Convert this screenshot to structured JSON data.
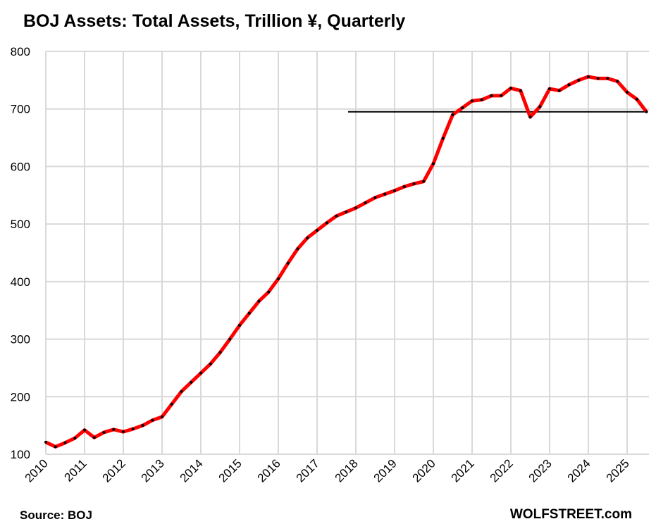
{
  "chart_data": {
    "type": "line",
    "title": "BOJ Assets: Total Assets, Trillion ¥, Quarterly",
    "source": "Source: BOJ",
    "brand": "WOLFSTREET.com",
    "xlabel": "",
    "ylabel": "",
    "xlim": [
      2010,
      2025.5
    ],
    "ylim": [
      100,
      800
    ],
    "yticks": [
      100,
      200,
      300,
      400,
      500,
      600,
      700,
      800
    ],
    "xticks": [
      "2010",
      "2011",
      "2012",
      "2013",
      "2014",
      "2015",
      "2016",
      "2017",
      "2018",
      "2019",
      "2020",
      "2021",
      "2022",
      "2023",
      "2024",
      "2025"
    ],
    "grid": true,
    "line_color": "#ff0000",
    "marker_color": "#000000",
    "start_quarter": "2010 Q1",
    "values": [
      121,
      113,
      120,
      128,
      142,
      129,
      138,
      143,
      139,
      144,
      150,
      159,
      165,
      187,
      209,
      225,
      241,
      257,
      277,
      300,
      324,
      345,
      366,
      382,
      405,
      432,
      457,
      476,
      489,
      502,
      514,
      521,
      528,
      537,
      546,
      552,
      558,
      565,
      570,
      574,
      605,
      649,
      690,
      702,
      714,
      716,
      723,
      723,
      736,
      732,
      686,
      704,
      735,
      732,
      742,
      750,
      756,
      753,
      753,
      748,
      729,
      717,
      695
    ],
    "reference_line": {
      "value": 695,
      "from_x": 2017.8,
      "to_x": 2025.5,
      "color": "#000000"
    }
  }
}
